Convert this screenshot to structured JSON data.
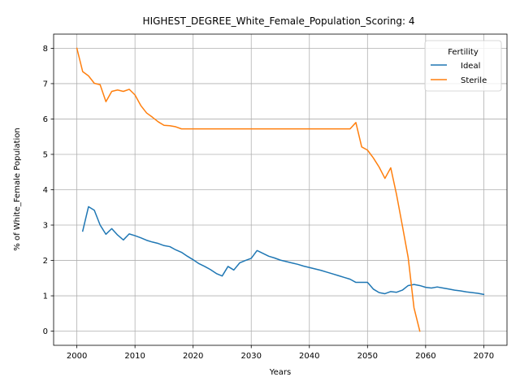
{
  "chart_data": {
    "type": "line",
    "title": "HIGHEST_DEGREE_White_Female_Population_Scoring: 4",
    "xlabel": "Years",
    "ylabel": "% of White_Female Population",
    "xlim": [
      1996,
      2074
    ],
    "ylim": [
      -0.4,
      8.4
    ],
    "xticks": [
      2000,
      2010,
      2020,
      2030,
      2040,
      2050,
      2060,
      2070
    ],
    "yticks": [
      0,
      1,
      2,
      3,
      4,
      5,
      6,
      7,
      8
    ],
    "grid": true,
    "legend": {
      "title": "Fertility",
      "placement": "top-right"
    },
    "series": [
      {
        "name": "Ideal",
        "color": "#1f77b4",
        "x": [
          2001,
          2002,
          2003,
          2004,
          2005,
          2006,
          2007,
          2008,
          2009,
          2010,
          2011,
          2012,
          2013,
          2014,
          2015,
          2016,
          2017,
          2018,
          2019,
          2020,
          2021,
          2022,
          2023,
          2024,
          2025,
          2026,
          2027,
          2028,
          2029,
          2030,
          2031,
          2032,
          2033,
          2034,
          2035,
          2036,
          2037,
          2038,
          2039,
          2040,
          2041,
          2042,
          2043,
          2044,
          2045,
          2046,
          2047,
          2048,
          2049,
          2050,
          2051,
          2052,
          2053,
          2054,
          2055,
          2056,
          2057,
          2058,
          2059,
          2060,
          2061,
          2062,
          2063,
          2064,
          2065,
          2066,
          2067,
          2068,
          2069,
          2070
        ],
        "values": [
          2.83,
          3.52,
          3.42,
          3.0,
          2.74,
          2.9,
          2.72,
          2.58,
          2.75,
          2.7,
          2.64,
          2.57,
          2.52,
          2.48,
          2.42,
          2.39,
          2.3,
          2.23,
          2.12,
          2.02,
          1.91,
          1.83,
          1.74,
          1.63,
          1.56,
          1.83,
          1.73,
          1.93,
          2.0,
          2.06,
          2.28,
          2.2,
          2.12,
          2.07,
          2.01,
          1.97,
          1.93,
          1.89,
          1.84,
          1.8,
          1.76,
          1.72,
          1.67,
          1.62,
          1.57,
          1.52,
          1.47,
          1.38,
          1.38,
          1.38,
          1.19,
          1.09,
          1.06,
          1.12,
          1.1,
          1.16,
          1.29,
          1.32,
          1.29,
          1.24,
          1.22,
          1.25,
          1.22,
          1.19,
          1.16,
          1.14,
          1.11,
          1.09,
          1.07,
          1.04
        ]
      },
      {
        "name": "Sterile",
        "color": "#ff7f0e",
        "x": [
          2000,
          2001,
          2002,
          2003,
          2004,
          2005,
          2006,
          2007,
          2008,
          2009,
          2010,
          2011,
          2012,
          2013,
          2014,
          2015,
          2016,
          2017,
          2018,
          2019,
          2020,
          2021,
          2022,
          2023,
          2024,
          2025,
          2026,
          2027,
          2028,
          2029,
          2030,
          2031,
          2032,
          2033,
          2034,
          2035,
          2036,
          2037,
          2038,
          2039,
          2040,
          2041,
          2042,
          2043,
          2044,
          2045,
          2046,
          2047,
          2048,
          2049,
          2050,
          2051,
          2052,
          2053,
          2054,
          2055,
          2056,
          2057,
          2058,
          2059
        ],
        "values": [
          8.0,
          7.34,
          7.22,
          7.01,
          6.97,
          6.49,
          6.78,
          6.82,
          6.78,
          6.84,
          6.68,
          6.38,
          6.17,
          6.05,
          5.92,
          5.82,
          5.81,
          5.78,
          5.72,
          5.72,
          5.72,
          5.72,
          5.72,
          5.72,
          5.72,
          5.72,
          5.72,
          5.72,
          5.72,
          5.72,
          5.72,
          5.72,
          5.72,
          5.72,
          5.72,
          5.72,
          5.72,
          5.72,
          5.72,
          5.72,
          5.72,
          5.72,
          5.72,
          5.72,
          5.72,
          5.72,
          5.72,
          5.72,
          5.9,
          5.21,
          5.12,
          4.9,
          4.64,
          4.32,
          4.62,
          3.86,
          2.98,
          2.08,
          0.66,
          0.0
        ]
      }
    ]
  }
}
